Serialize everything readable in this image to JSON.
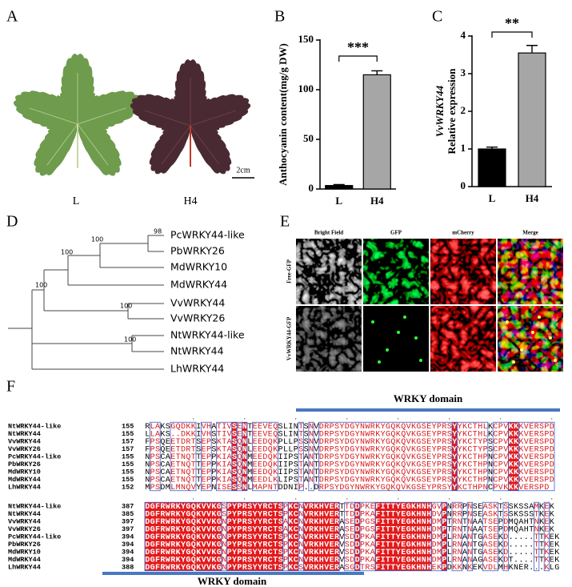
{
  "panel_letters": [
    "A",
    "B",
    "C",
    "D",
    "E",
    "F"
  ],
  "panel_a": {
    "labels": [
      "L",
      "H4"
    ],
    "scale_bar": "2cm"
  },
  "chart_data": [
    {
      "type": "bar",
      "categories": [
        "L",
        "H4"
      ],
      "values": [
        3.5,
        115
      ],
      "errors": [
        1,
        4
      ],
      "colors": [
        "#000000",
        "#a6a6a6"
      ],
      "ylim": [
        0,
        150
      ],
      "yticks": [
        0,
        50,
        100,
        150
      ],
      "ylabel": "Anthocyanin content(mg/g DW)",
      "significance": "***"
    },
    {
      "type": "bar",
      "categories": [
        "L",
        "H4"
      ],
      "values": [
        1.0,
        3.55
      ],
      "errors": [
        0.05,
        0.2
      ],
      "colors": [
        "#000000",
        "#a6a6a6"
      ],
      "ylim": [
        0,
        4
      ],
      "yticks": [
        0,
        1,
        2,
        3,
        4
      ],
      "ylabel_italic": "VvWRKY44",
      "ylabel": "Relative expression",
      "significance": "**"
    }
  ],
  "tree": {
    "leaves": [
      "PcWRKY44-like",
      "PbWRKY26",
      "MdWRKY10",
      "MdWRKY44",
      "VvWRKY44",
      "VvWRKY26",
      "NtWRKY44-like",
      "NtWRKY44",
      "LhWRKY44"
    ],
    "bootstrap": [
      98,
      100,
      100,
      100,
      100,
      100
    ]
  },
  "panel_e": {
    "columns": [
      "Bright Field",
      "GFP",
      "mCherry",
      "Merge"
    ],
    "rows": [
      "Free-GFP",
      "VvWRKY44-GFP"
    ]
  },
  "alignment": {
    "domain_label": "WRKY domain",
    "blocks": [
      {
        "rows": [
          {
            "name": "NtWRKY44-like",
            "start": 155,
            "seq": "RLAKSGQDKKIVHATIVSENTEEVEQSLINTSNVDRPSYDGYNWRKYGQKQVKGSEYPRSYYKCTHLKCPVKKKVERSPD"
          },
          {
            "name": "NtWRKY44",
            "start": 155,
            "seq": "LLAKS..DKKIVHSTIVSENTEEVEQSLINTSNVDRPSYDGYNWRKYGQKQVKGSEYPRSYYKCTHLKCPVKKKVERSPD"
          },
          {
            "name": "VvWRKY44",
            "start": 157,
            "seq": "FPSQEETDRTSEPSKTASQNLEEDQKPLLPSSNVDRPSYDGYNWRKYGQKQVKGSEYPRSYYKCTYPSCPVKKKVERSPD"
          },
          {
            "name": "VvWRKY26",
            "start": 157,
            "seq": "FPSQEETDRTSEPSKTASQNLEEDQKPLLPSSNVDRPSYDGYNWRKYGQKQVKGSEYPRSYYKCTYPSCPVKKKVERSPD"
          },
          {
            "name": "PcWRKY44-like",
            "start": 155,
            "seq": "NPSCAETNQTTEPPKIASQNMEEDQKIIPSTANTDRPSYDGYNWRKYGQKQVKGSEYPRSYYKCTHPNCPVKKKVERSPD"
          },
          {
            "name": "PbWRKY26",
            "start": 155,
            "seq": "NPSCAETNQTTEPPKIASQNMEEDQKIIPSTANTDRPSYDGYNWRKYGQKQVKGSEYPRSYYKCTHPNCPVKKKVERSPD"
          },
          {
            "name": "MdWRKY10",
            "start": 155,
            "seq": "NPSCAETNQTTEPPKIASQNMEEDQKIIPSTANTDRPSYDGYNWRKYGQKQVKGSEYPRSYYKCTHPNCPVKKKVERSPD"
          },
          {
            "name": "MdWRKY44",
            "start": 155,
            "seq": "NPSCAETNQTTEPPKIASQNMEEDLKLIPSTANTDRPSYDGYNWRKYGQKQVKGSEYPRSYYKCTHPNCPVKKKVERSPD"
          },
          {
            "name": "LhWRKY44",
            "start": 152,
            "seq": "MPSDMLMNQVYEPNISESSNLMAPNTDDNIP..DRPSYDGYNWRKYGQKQVKGSEYPRSYYKCTHPNCPVKKKVERSPD"
          }
        ]
      },
      {
        "rows": [
          {
            "name": "NtWRKY44-like",
            "start": 387,
            "seq": "DGFRWRKYGQKVVKGSPYPRSYYRCTSPKCNVRKHVERTTDDPKEFITTYEGKHNHGVPNRRPNSEASKTSSKSSAMKEK"
          },
          {
            "name": "NtWRKY44",
            "start": 385,
            "seq": "DGFRWRKYGQKVVKGSPYPRSYYRCTSPKCNVRKHVERTTDDPKAFITTYEGKHNHDVPNRRPNSEASKTSSKSSSTKEK"
          },
          {
            "name": "VvWRKY44",
            "start": 397,
            "seq": "DGFRWRKYGQKVVKGNPYPRSYYRCTSAKCNVRKHVERASEDPGSFITTYEGKHNHDMPTRNTNAATSEPDMQAHTNKEK"
          },
          {
            "name": "VvWRKY26",
            "start": 397,
            "seq": "DGFRWRKYGQKVVKGNPYPRSYYRCTSAKCNVRKHVERASEDPGSFITTYEGKHNHDMPTRNTNAATSEPDMQAHTNKEK"
          },
          {
            "name": "PcWRKY44-like",
            "start": 394,
            "seq": "DGFRWRKYGQKVVKGNPYPRSYYRCTSPKCNVRKHVERVSDDPKAFITTYEGKHNHDMPLRNANTGASEKD.....TTKEK"
          },
          {
            "name": "PbWRKY26",
            "start": 394,
            "seq": "DGFRWRKYGQKVVKGNPYPRSYYRCTSPKCNVRKHVERVSDDPKAFITTYEGKHNHDMPLRNANTGASEKD.....TTKEK"
          },
          {
            "name": "MdWRKY10",
            "start": 394,
            "seq": "DGFRWRKYGQKVVKGNPYPRSYYRCTSPKCNVRKHVERVSDDPKAFITTYEGKHNHDMPLRNANTGASEKD.....TTKEK"
          },
          {
            "name": "MdWRKY44",
            "start": 394,
            "seq": "DGFRWRKYGQKVVKGNPYPRSYYRCTSPKCNVRKHVERVSDDPKAFITTYEGKHNHDMPLRNANAGASEKDT....TTKEK"
          },
          {
            "name": "LhWRKY44",
            "start": 388,
            "seq": "DGFRWRKYGQKVVKGNPYPRSYYRCTSPKCSVRKHVERASGDTRSFITTYEGKHNHEKPDKKNKEKVDLMHKNER...KLG"
          }
        ]
      }
    ]
  }
}
